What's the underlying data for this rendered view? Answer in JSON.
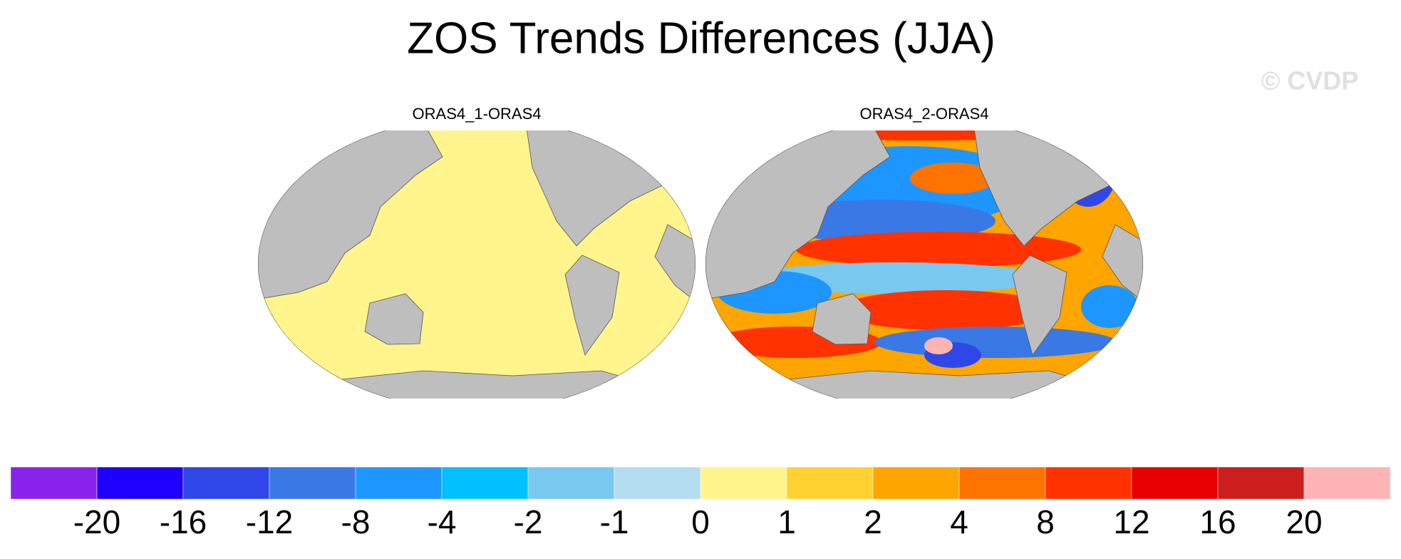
{
  "title": "ZOS Trends Differences (JJA)",
  "watermark": "© CVDP",
  "panels": [
    {
      "title": "ORAS4_1-ORAS4"
    },
    {
      "title": "ORAS4_2-ORAS4"
    }
  ],
  "colorbar": {
    "colors": [
      "#8a22ee",
      "#1e00ff",
      "#2f46e8",
      "#3a78e6",
      "#1e96ff",
      "#00c0ff",
      "#78c8f0",
      "#b4dcf0",
      "#fff58c",
      "#ffd232",
      "#ffa500",
      "#ff7300",
      "#ff3200",
      "#e60000",
      "#cd1e1e",
      "#ffb4b4"
    ],
    "levels": [
      -20,
      -16,
      -12,
      -8,
      -4,
      -2,
      -1,
      0,
      1,
      2,
      4,
      8,
      12,
      16,
      20
    ]
  }
}
